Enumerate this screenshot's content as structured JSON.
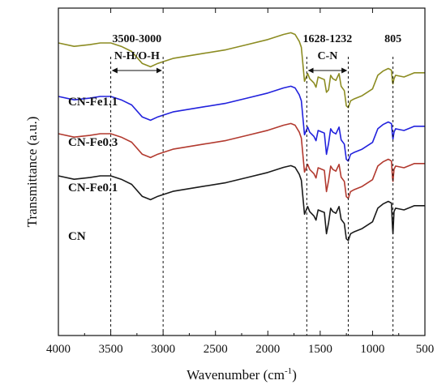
{
  "chart_data": {
    "type": "line",
    "xlabel": "Wavenumber (cm",
    "xlabel_sup": "-1",
    "xlabel_end": ")",
    "ylabel": "Transmittance (a.u.)",
    "xlim": [
      4000,
      500
    ],
    "x_reversed": true,
    "x_ticks": [
      4000,
      3500,
      3000,
      2500,
      2000,
      1500,
      1000,
      500
    ],
    "y_ticks_shown": false,
    "grid": false,
    "annotations": [
      {
        "range_text": "3500-3000",
        "assignment": "N-H/O-H",
        "x_start": 3500,
        "x_end": 3000,
        "arrow": true
      },
      {
        "range_text": "1628-1232",
        "assignment": "C-N",
        "x_start": 1628,
        "x_end": 1232,
        "arrow": true
      },
      {
        "range_text": "805",
        "assignment": "",
        "x_start": 805,
        "x_end": 805,
        "arrow": false
      }
    ],
    "series": [
      {
        "name": "CN",
        "color": "#1a1a1a",
        "points": [
          [
            4000,
            60
          ],
          [
            3850,
            56
          ],
          [
            3700,
            58
          ],
          [
            3600,
            60
          ],
          [
            3500,
            60
          ],
          [
            3400,
            56
          ],
          [
            3300,
            50
          ],
          [
            3200,
            36
          ],
          [
            3120,
            32
          ],
          [
            3050,
            36
          ],
          [
            3000,
            38
          ],
          [
            2900,
            42
          ],
          [
            2800,
            44
          ],
          [
            2600,
            48
          ],
          [
            2400,
            52
          ],
          [
            2200,
            58
          ],
          [
            2000,
            64
          ],
          [
            1850,
            70
          ],
          [
            1780,
            72
          ],
          [
            1740,
            70
          ],
          [
            1700,
            62
          ],
          [
            1680,
            55
          ],
          [
            1650,
            15
          ],
          [
            1620,
            24
          ],
          [
            1600,
            18
          ],
          [
            1560,
            13
          ],
          [
            1540,
            8
          ],
          [
            1520,
            20
          ],
          [
            1480,
            18
          ],
          [
            1460,
            17
          ],
          [
            1440,
            -8
          ],
          [
            1420,
            5
          ],
          [
            1400,
            22
          ],
          [
            1380,
            18
          ],
          [
            1350,
            16
          ],
          [
            1320,
            24
          ],
          [
            1300,
            9
          ],
          [
            1270,
            4
          ],
          [
            1250,
            -14
          ],
          [
            1232,
            -16
          ],
          [
            1210,
            -8
          ],
          [
            1180,
            -6
          ],
          [
            1100,
            -2
          ],
          [
            1000,
            6
          ],
          [
            950,
            22
          ],
          [
            900,
            27
          ],
          [
            850,
            30
          ],
          [
            820,
            28
          ],
          [
            810,
            0
          ],
          [
            805,
            -8
          ],
          [
            795,
            18
          ],
          [
            780,
            22
          ],
          [
            700,
            20
          ],
          [
            600,
            25
          ],
          [
            500,
            25
          ]
        ]
      },
      {
        "name": "CN-Fe0.1",
        "color": "#b23a2f",
        "points": [
          [
            4000,
            60
          ],
          [
            3850,
            56
          ],
          [
            3700,
            58
          ],
          [
            3600,
            60
          ],
          [
            3500,
            60
          ],
          [
            3400,
            56
          ],
          [
            3300,
            50
          ],
          [
            3200,
            36
          ],
          [
            3120,
            32
          ],
          [
            3050,
            36
          ],
          [
            3000,
            38
          ],
          [
            2900,
            42
          ],
          [
            2800,
            44
          ],
          [
            2600,
            48
          ],
          [
            2400,
            52
          ],
          [
            2200,
            58
          ],
          [
            2000,
            64
          ],
          [
            1850,
            70
          ],
          [
            1780,
            72
          ],
          [
            1740,
            70
          ],
          [
            1700,
            62
          ],
          [
            1680,
            55
          ],
          [
            1650,
            15
          ],
          [
            1620,
            24
          ],
          [
            1600,
            18
          ],
          [
            1560,
            13
          ],
          [
            1540,
            8
          ],
          [
            1520,
            20
          ],
          [
            1480,
            18
          ],
          [
            1460,
            17
          ],
          [
            1440,
            -8
          ],
          [
            1420,
            5
          ],
          [
            1400,
            22
          ],
          [
            1380,
            18
          ],
          [
            1350,
            16
          ],
          [
            1320,
            24
          ],
          [
            1300,
            9
          ],
          [
            1270,
            4
          ],
          [
            1250,
            -14
          ],
          [
            1232,
            -16
          ],
          [
            1210,
            -8
          ],
          [
            1180,
            -6
          ],
          [
            1100,
            -2
          ],
          [
            1000,
            6
          ],
          [
            950,
            22
          ],
          [
            900,
            27
          ],
          [
            850,
            30
          ],
          [
            820,
            28
          ],
          [
            810,
            8
          ],
          [
            805,
            4
          ],
          [
            795,
            18
          ],
          [
            780,
            22
          ],
          [
            700,
            20
          ],
          [
            600,
            25
          ],
          [
            500,
            25
          ]
        ]
      },
      {
        "name": "CN-Fe0.3",
        "color": "#2222dd",
        "points": [
          [
            4000,
            60
          ],
          [
            3850,
            56
          ],
          [
            3700,
            58
          ],
          [
            3600,
            60
          ],
          [
            3500,
            60
          ],
          [
            3400,
            56
          ],
          [
            3300,
            50
          ],
          [
            3200,
            36
          ],
          [
            3120,
            32
          ],
          [
            3050,
            36
          ],
          [
            3000,
            38
          ],
          [
            2900,
            42
          ],
          [
            2800,
            44
          ],
          [
            2600,
            48
          ],
          [
            2400,
            52
          ],
          [
            2200,
            58
          ],
          [
            2000,
            64
          ],
          [
            1850,
            70
          ],
          [
            1780,
            72
          ],
          [
            1740,
            70
          ],
          [
            1700,
            62
          ],
          [
            1680,
            55
          ],
          [
            1650,
            15
          ],
          [
            1620,
            24
          ],
          [
            1600,
            18
          ],
          [
            1560,
            13
          ],
          [
            1540,
            8
          ],
          [
            1520,
            20
          ],
          [
            1480,
            18
          ],
          [
            1460,
            17
          ],
          [
            1440,
            -8
          ],
          [
            1420,
            5
          ],
          [
            1400,
            22
          ],
          [
            1380,
            18
          ],
          [
            1350,
            16
          ],
          [
            1320,
            24
          ],
          [
            1300,
            9
          ],
          [
            1270,
            4
          ],
          [
            1250,
            -14
          ],
          [
            1232,
            -16
          ],
          [
            1210,
            -8
          ],
          [
            1180,
            -6
          ],
          [
            1100,
            -2
          ],
          [
            1000,
            6
          ],
          [
            950,
            22
          ],
          [
            900,
            27
          ],
          [
            850,
            30
          ],
          [
            820,
            28
          ],
          [
            810,
            14
          ],
          [
            805,
            10
          ],
          [
            795,
            18
          ],
          [
            780,
            22
          ],
          [
            700,
            20
          ],
          [
            600,
            25
          ],
          [
            500,
            25
          ]
        ]
      },
      {
        "name": "CN-Fe1.1",
        "color": "#8c8c22",
        "points": [
          [
            4000,
            60
          ],
          [
            3850,
            56
          ],
          [
            3700,
            58
          ],
          [
            3600,
            60
          ],
          [
            3500,
            60
          ],
          [
            3400,
            56
          ],
          [
            3300,
            50
          ],
          [
            3200,
            36
          ],
          [
            3120,
            32
          ],
          [
            3050,
            36
          ],
          [
            3000,
            38
          ],
          [
            2900,
            42
          ],
          [
            2800,
            44
          ],
          [
            2600,
            48
          ],
          [
            2400,
            52
          ],
          [
            2200,
            58
          ],
          [
            2000,
            64
          ],
          [
            1850,
            70
          ],
          [
            1780,
            72
          ],
          [
            1740,
            70
          ],
          [
            1700,
            62
          ],
          [
            1680,
            55
          ],
          [
            1650,
            15
          ],
          [
            1620,
            24
          ],
          [
            1600,
            18
          ],
          [
            1560,
            13
          ],
          [
            1540,
            8
          ],
          [
            1520,
            20
          ],
          [
            1480,
            18
          ],
          [
            1460,
            17
          ],
          [
            1440,
            2
          ],
          [
            1420,
            5
          ],
          [
            1400,
            22
          ],
          [
            1380,
            18
          ],
          [
            1350,
            16
          ],
          [
            1320,
            24
          ],
          [
            1300,
            9
          ],
          [
            1270,
            4
          ],
          [
            1250,
            -14
          ],
          [
            1232,
            -16
          ],
          [
            1210,
            -8
          ],
          [
            1180,
            -6
          ],
          [
            1100,
            -2
          ],
          [
            1000,
            6
          ],
          [
            950,
            22
          ],
          [
            900,
            27
          ],
          [
            850,
            30
          ],
          [
            820,
            28
          ],
          [
            810,
            14
          ],
          [
            805,
            12
          ],
          [
            795,
            18
          ],
          [
            780,
            22
          ],
          [
            700,
            20
          ],
          [
            600,
            25
          ],
          [
            500,
            25
          ]
        ]
      }
    ]
  }
}
